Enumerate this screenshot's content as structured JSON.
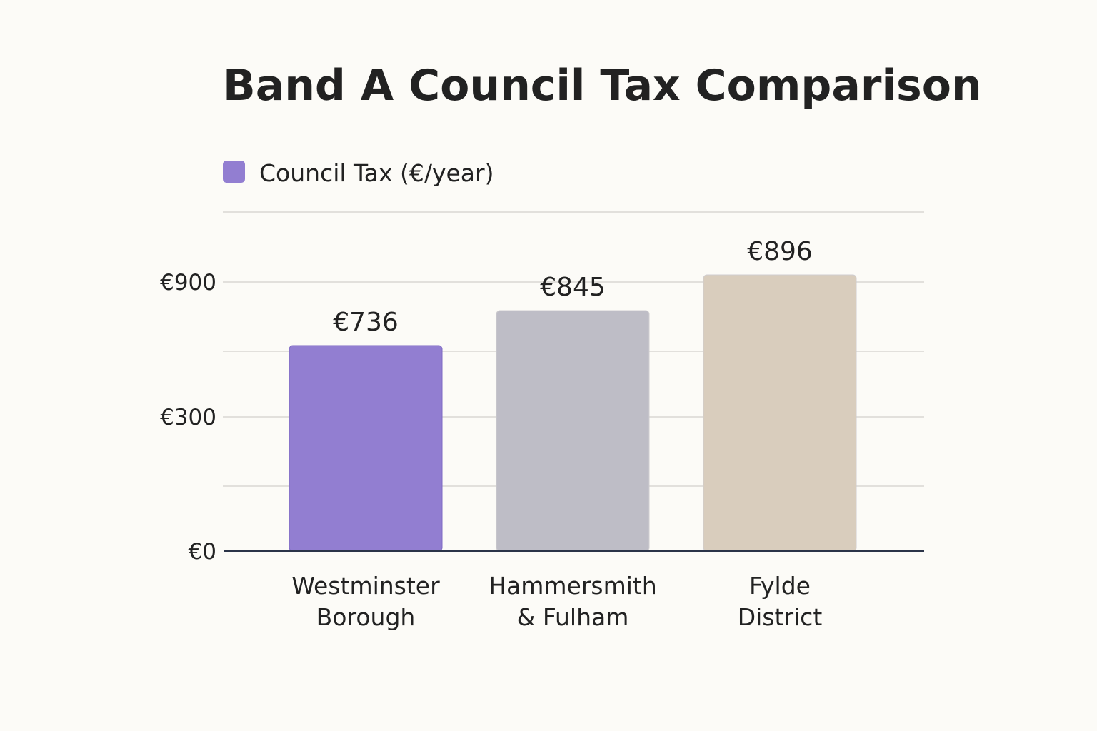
{
  "chart_data": {
    "type": "bar",
    "title": "Band A Council Tax Comparison",
    "legend": {
      "position": "top-left",
      "entries": [
        "Council Tax (€/year)"
      ]
    },
    "series": [
      {
        "name": "Council Tax (€/year)",
        "values": [
          736,
          845,
          896
        ]
      }
    ],
    "categories": [
      [
        "Westminster",
        "Borough"
      ],
      [
        "Hammersmith",
        "& Fulham"
      ],
      [
        "Fylde",
        "District"
      ]
    ],
    "value_labels": [
      "€736",
      "€845",
      "€896"
    ],
    "bar_colors": [
      "#927ed1",
      "#bebdc6",
      "#d9cdbd"
    ],
    "legend_color": "#927ed1",
    "y_ticks": [
      {
        "value": 0,
        "label": "€0"
      },
      {
        "value": 300,
        "label": "€300"
      },
      {
        "value": 900,
        "label": "€900"
      }
    ],
    "grid": true,
    "xlabel": "",
    "ylabel": ""
  }
}
